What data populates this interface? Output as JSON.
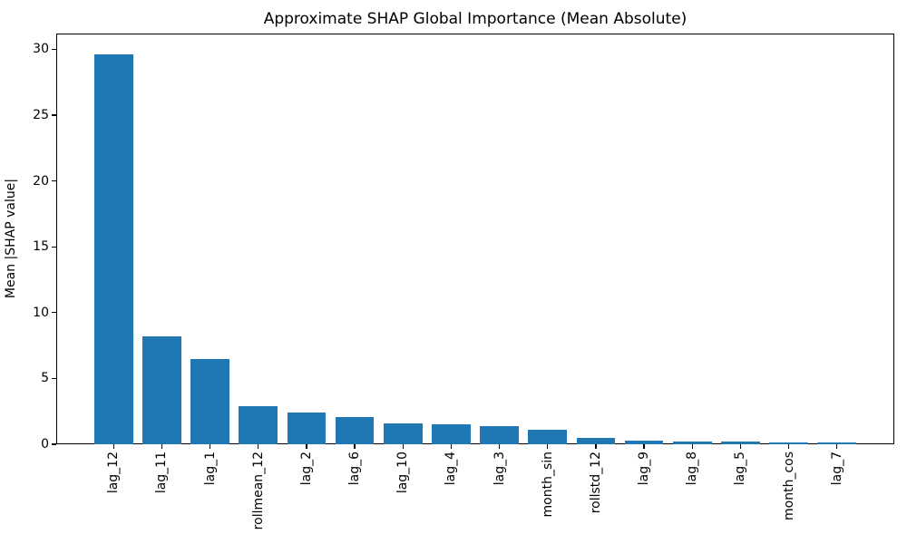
{
  "figure": {
    "background": "#ffffff",
    "text_color": "#000000"
  },
  "chart_data": {
    "type": "bar",
    "title": "Approximate SHAP Global Importance (Mean Absolute)",
    "xlabel": "",
    "ylabel": "Mean |SHAP value|",
    "categories": [
      "lag_12",
      "lag_11",
      "lag_1",
      "rollmean_12",
      "lag_2",
      "lag_6",
      "lag_10",
      "lag_4",
      "lag_3",
      "month_sin",
      "rollstd_12",
      "lag_9",
      "lag_8",
      "lag_5",
      "month_cos",
      "lag_7"
    ],
    "values": [
      29.6,
      8.2,
      6.5,
      2.9,
      2.4,
      2.1,
      1.6,
      1.5,
      1.4,
      1.1,
      0.5,
      0.25,
      0.24,
      0.22,
      0.16,
      0.14
    ],
    "yticks": [
      0,
      5,
      10,
      15,
      20,
      25,
      30
    ],
    "ylim": [
      0,
      31.2
    ],
    "xlim": [
      -1.19,
      16.19
    ],
    "bar_width_units": 0.8,
    "bar_color": "#1f77b4",
    "grid": false,
    "legend_position": "none"
  }
}
